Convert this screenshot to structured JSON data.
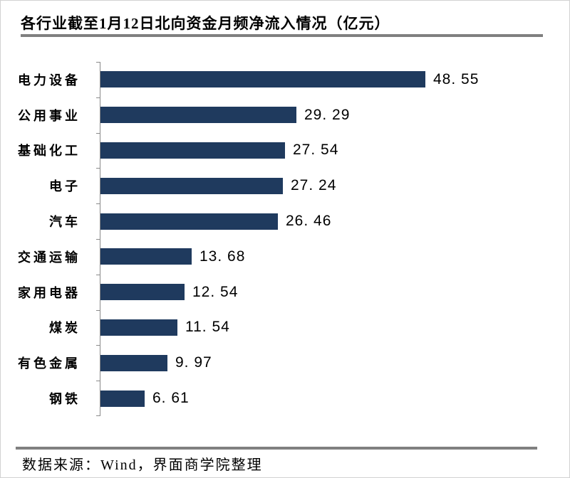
{
  "title": "各行业截至1月12日北向资金月频净流入情况（亿元）",
  "footer": {
    "source": "数据来源：Wind，界面商学院整理"
  },
  "colors": {
    "bar": "#1F3A5E",
    "rule": "#808080",
    "axis": "#8A8A8A",
    "text": "#000000",
    "page_border": "#D2D2D2"
  },
  "chart_data": {
    "type": "bar",
    "orientation": "horizontal",
    "title": "各行业截至1月12日北向资金月频净流入情况（亿元）",
    "unit": "亿元",
    "categories": [
      "电力设备",
      "公用事业",
      "基础化工",
      "电子",
      "汽车",
      "交通运输",
      "家用电器",
      "煤炭",
      "有色金属",
      "钢铁"
    ],
    "values": [
      48.55,
      29.29,
      27.54,
      27.24,
      26.46,
      13.68,
      12.54,
      11.54,
      9.97,
      6.61
    ],
    "value_labels": [
      "48. 55",
      "29. 29",
      "27. 54",
      "27. 24",
      "26. 46",
      "13. 68",
      "12. 54",
      "11. 54",
      "9. 97",
      "6. 61"
    ],
    "bar_color": "#1F3A5E",
    "axis_color": "#8A8A8A",
    "xlim": [
      0,
      48.55
    ],
    "x_axis_tick_labels_visible": false,
    "grid": false,
    "legend": "none",
    "value_labels_position": "end-of-bar"
  }
}
